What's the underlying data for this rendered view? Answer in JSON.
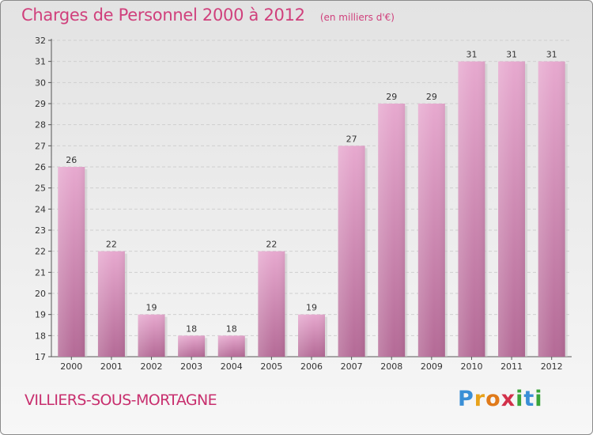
{
  "header": {
    "title": "Charges de Personnel 2000 à 2012",
    "subtitle": "(en milliers d'€)"
  },
  "footer": {
    "commune": "VILLIERS-SOUS-MORTAGNE",
    "logo_letters": [
      "P",
      "r",
      "o",
      "x",
      "i",
      "t",
      "i"
    ],
    "logo_colors": [
      "#3a8fd6",
      "#e8a21b",
      "#e07a1a",
      "#d2304a",
      "#3aa43a",
      "#3a8fd6",
      "#3aa43a"
    ]
  },
  "chart_data": {
    "type": "bar",
    "categories": [
      "2000",
      "2001",
      "2002",
      "2003",
      "2004",
      "2005",
      "2006",
      "2007",
      "2008",
      "2009",
      "2010",
      "2011",
      "2012"
    ],
    "values": [
      26,
      22,
      19,
      18,
      18,
      22,
      19,
      27,
      29,
      29,
      31,
      31,
      31
    ],
    "title": "Charges de Personnel 2000 à 2012",
    "subtitle": "(en milliers d'€)",
    "ylim": [
      17,
      32
    ],
    "yticks": [
      17,
      18,
      19,
      20,
      21,
      22,
      23,
      24,
      25,
      26,
      27,
      28,
      29,
      30,
      31,
      32
    ],
    "grid": true,
    "bar_color": "#d98ab7",
    "legend": "none"
  }
}
